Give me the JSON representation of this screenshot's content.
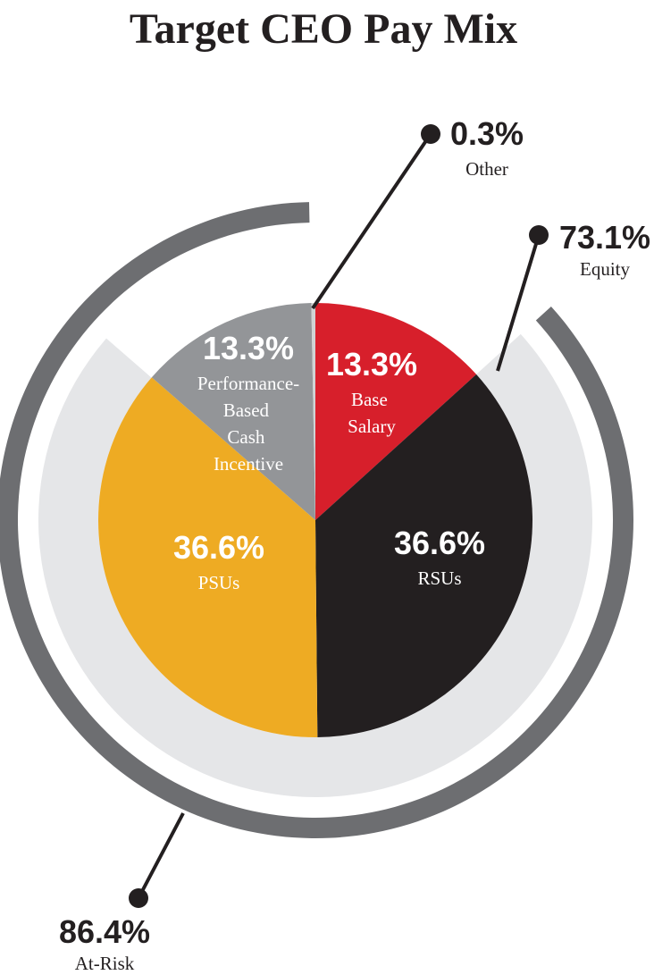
{
  "chart_data": {
    "type": "pie",
    "title": "Target CEO Pay Mix",
    "categories": [
      "Base Salary",
      "RSUs",
      "PSUs",
      "Performance-Based Cash Incentive",
      "Other"
    ],
    "values": [
      13.3,
      36.6,
      36.6,
      13.3,
      0.3
    ],
    "value_labels": [
      "13.3%",
      "36.6%",
      "36.6%",
      "13.3%",
      "0.3%"
    ],
    "colors": [
      "#d71f2b",
      "#231f20",
      "#eeab23",
      "#939598",
      "#d1d3d4"
    ],
    "rings": [
      {
        "name": "Equity",
        "value": 73.1,
        "value_label": "73.1%",
        "color": "#e5e6e8"
      },
      {
        "name": "At-Risk",
        "value": 86.4,
        "value_label": "86.4%",
        "color": "#6d6e71"
      }
    ]
  }
}
